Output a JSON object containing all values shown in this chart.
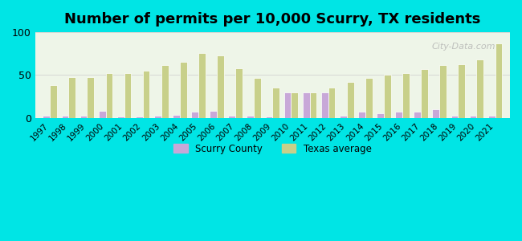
{
  "title": "Number of permits per 10,000 Scurry, TX residents",
  "years": [
    1997,
    1998,
    1999,
    2000,
    2001,
    2002,
    2003,
    2004,
    2005,
    2006,
    2007,
    2008,
    2009,
    2010,
    2011,
    2012,
    2013,
    2014,
    2015,
    2016,
    2017,
    2018,
    2019,
    2020,
    2021
  ],
  "texas_avg": [
    38,
    48,
    48,
    52,
    52,
    55,
    62,
    65,
    76,
    73,
    58,
    47,
    35,
    30,
    30,
    35,
    42,
    47,
    50,
    52,
    57,
    62,
    63,
    68,
    87
  ],
  "scurry": [
    3,
    3,
    3,
    8,
    2,
    2,
    3,
    4,
    7,
    8,
    3,
    3,
    2,
    30,
    30,
    30,
    3,
    7,
    5,
    7,
    7,
    10,
    3,
    3,
    3
  ],
  "texas_color": "#c8d08a",
  "scurry_color": "#c8a8d8",
  "background_chart": [
    "#e8f5e0",
    "#f5f5e8"
  ],
  "bg_outer": "#00e5e5",
  "ylim": [
    0,
    100
  ],
  "yticks": [
    0,
    50,
    100
  ],
  "bar_width": 0.38,
  "title_fontsize": 13
}
